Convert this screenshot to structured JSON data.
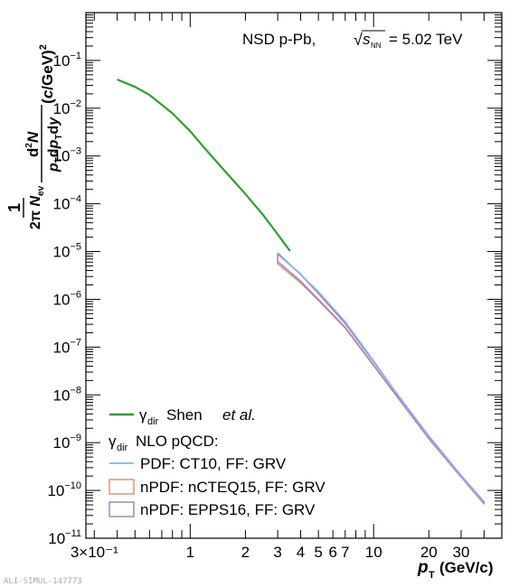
{
  "chart_data": {
    "type": "line",
    "x_scale": "log",
    "y_scale": "log",
    "xlim": [
      0.27,
      50
    ],
    "ylim": [
      1e-11,
      1
    ],
    "grid": false,
    "legend_position": "bottom-left",
    "annotation": {
      "system": "NSD p-Pb,",
      "energy_value": "= 5.02 TeV"
    },
    "xlabel": {
      "main": "p",
      "sub": "T",
      "unit": "(GeV/c)"
    },
    "ylabel": "1/(2π N_ev) d²N/(p_T dp_T dy) (c/GeV)²",
    "watermark": "ALI-SIMUL-147773",
    "x_ticks": [
      {
        "value": 0.3,
        "label": "3×10⁻¹"
      },
      {
        "value": 1,
        "label": "1"
      },
      {
        "value": 2,
        "label": "2"
      },
      {
        "value": 3,
        "label": "3"
      },
      {
        "value": 4,
        "label": "4"
      },
      {
        "value": 5,
        "label": "5"
      },
      {
        "value": 6,
        "label": "6"
      },
      {
        "value": 7,
        "label": "7"
      },
      {
        "value": 10,
        "label": "10"
      },
      {
        "value": 20,
        "label": "20"
      },
      {
        "value": 30,
        "label": "30"
      }
    ],
    "y_tick_exponents": [
      -1,
      -2,
      -3,
      -4,
      -5,
      -6,
      -7,
      -8,
      -9,
      -10,
      -11
    ],
    "legend": {
      "series0_symbol": "γ",
      "series0_sub": "dir",
      "series0_text": "Shen",
      "series0_italic": "et al.",
      "header_symbol": "γ",
      "header_sub": "dir",
      "header_text": "NLO pQCD:",
      "items": [
        "PDF: CT10, FF: GRV",
        "nPDF: nCTEQ15, FF: GRV",
        "nPDF: EPPS16, FF: GRV"
      ]
    },
    "series": [
      {
        "name": "γdir Shen et al.",
        "style": "line",
        "color": "#2ca02c",
        "x": [
          0.4,
          0.5,
          0.6,
          0.8,
          1.0,
          1.2,
          1.5,
          2.0,
          2.5,
          3.0,
          3.5
        ],
        "y": [
          0.04,
          0.028,
          0.019,
          0.0078,
          0.0033,
          0.00145,
          0.00055,
          0.00016,
          5.8e-05,
          2.3e-05,
          1.03e-05
        ]
      },
      {
        "name": "PDF: CT10, FF: GRV",
        "style": "line",
        "color": "#7fb8ef",
        "x": [
          3,
          4,
          5,
          7,
          10,
          15,
          20,
          30,
          40
        ],
        "y": [
          9.5e-06,
          3.3e-06,
          1.45e-06,
          3.4e-07,
          5.2e-08,
          5.6e-09,
          1.3e-09,
          2e-10,
          5.5e-11
        ]
      },
      {
        "name": "nPDF: nCTEQ15, FF: GRV",
        "style": "band",
        "color": "#e08a6b",
        "x": [
          3,
          4,
          5,
          7,
          10,
          15,
          20,
          30,
          40
        ],
        "lower": [
          5.6e-06,
          2.2e-06,
          9.5e-07,
          2.5e-07,
          4.1e-08,
          5.2e-09,
          1.2e-09,
          1.9e-10,
          5.2e-11
        ],
        "upper": [
          8.9e-06,
          3.3e-06,
          1.32e-06,
          3.1e-07,
          4.9e-08,
          5.8e-09,
          1.35e-09,
          2.05e-10,
          5.7e-11
        ]
      },
      {
        "name": "nPDF: EPPS16, FF: GRV",
        "style": "band",
        "color": "#a07cc9",
        "x": [
          3,
          4,
          5,
          7,
          10,
          15,
          20,
          30,
          40
        ],
        "lower": [
          6.2e-06,
          2.4e-06,
          1e-06,
          2.6e-07,
          4.2e-08,
          5.3e-09,
          1.22e-09,
          1.92e-10,
          5.3e-11
        ],
        "upper": [
          8.9e-06,
          3.4e-06,
          1.38e-06,
          3.2e-07,
          5e-08,
          5.9e-09,
          1.37e-09,
          2.07e-10,
          5.8e-11
        ]
      }
    ]
  }
}
